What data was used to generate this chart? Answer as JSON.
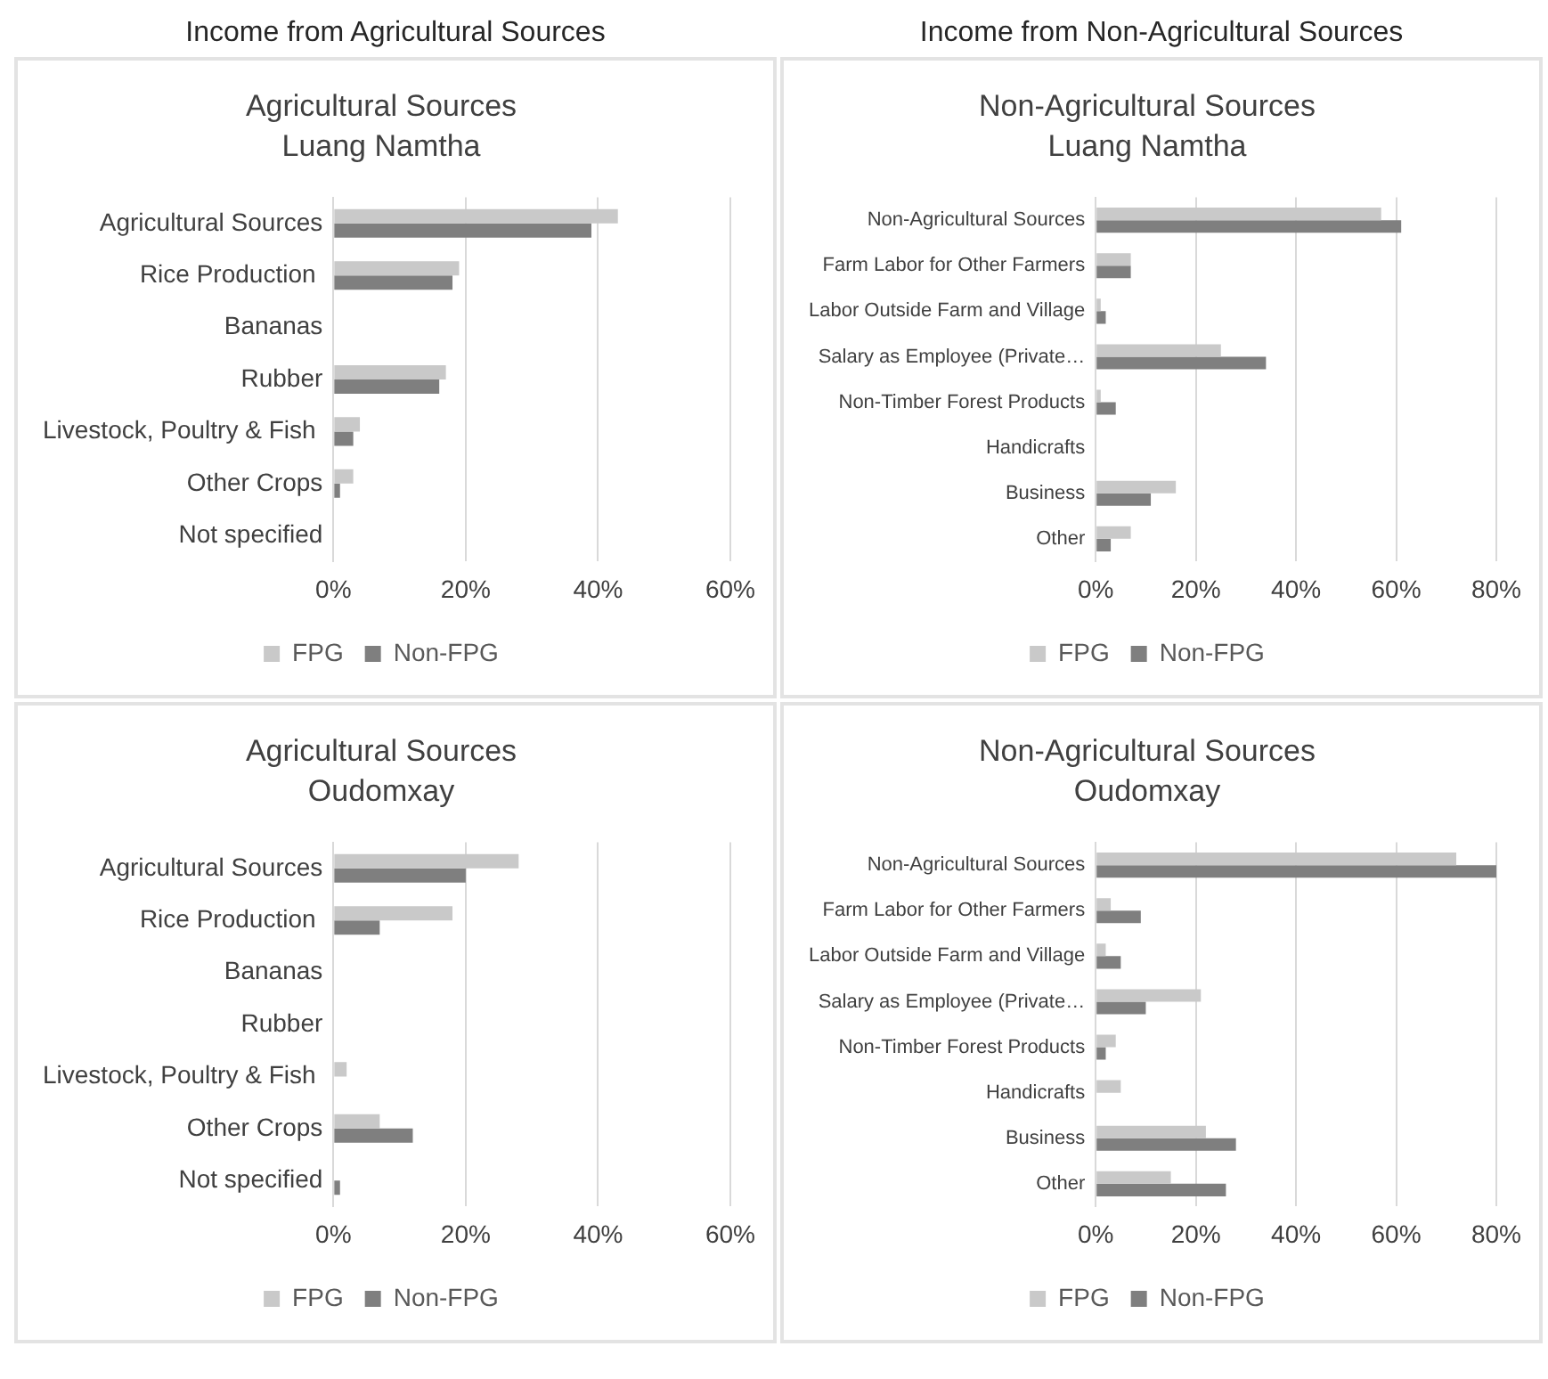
{
  "chart_data": [
    {
      "type": "bar",
      "orientation": "horizontal",
      "title": "Agricultural Sources",
      "subtitle": "Luang Namtha",
      "annotations": [
        "Income from Agricultural Sources"
      ],
      "categories": [
        "Agricultural Sources",
        "Rice Production ",
        "Bananas",
        "Rubber",
        "Livestock, Poultry & Fish ",
        "Other Crops",
        "Not specified"
      ],
      "series": [
        {
          "name": "FPG",
          "color": "#c9c9c9",
          "values": [
            43,
            19,
            0,
            17,
            4,
            3,
            0
          ]
        },
        {
          "name": "Non-FPG",
          "color": "#7f7f7f",
          "values": [
            39,
            18,
            0,
            16,
            3,
            1,
            0
          ]
        }
      ],
      "xlim": [
        0,
        60
      ],
      "xticks": [
        {
          "value": 0,
          "label": "0%"
        },
        {
          "value": 20,
          "label": "20%"
        },
        {
          "value": 40,
          "label": "40%"
        },
        {
          "value": 60,
          "label": "60%"
        }
      ],
      "grid": "x",
      "legend": "bottom"
    },
    {
      "type": "bar",
      "orientation": "horizontal",
      "title": "Non-Agricultural Sources",
      "subtitle": "Luang Namtha",
      "annotations": [
        "Income from Non-Agricultural Sources"
      ],
      "categories": [
        "Non-Agricultural Sources",
        "Farm Labor for Other Farmers",
        "Labor Outside Farm and Village",
        "Salary as Employee (Private…",
        "Non-Timber Forest Products",
        "Handicrafts",
        "Business",
        "Other"
      ],
      "series": [
        {
          "name": "FPG",
          "color": "#c9c9c9",
          "values": [
            57,
            7,
            1,
            25,
            1,
            0,
            16,
            7
          ]
        },
        {
          "name": "Non-FPG",
          "color": "#7f7f7f",
          "values": [
            61,
            7,
            2,
            34,
            4,
            0,
            11,
            3
          ]
        }
      ],
      "xlim": [
        0,
        80
      ],
      "xticks": [
        {
          "value": 0,
          "label": "0%"
        },
        {
          "value": 20,
          "label": "20%"
        },
        {
          "value": 40,
          "label": "40%"
        },
        {
          "value": 60,
          "label": "60%"
        },
        {
          "value": 80,
          "label": "80%"
        }
      ],
      "grid": "x",
      "legend": "bottom"
    },
    {
      "type": "bar",
      "orientation": "horizontal",
      "title": "Agricultural Sources",
      "subtitle": "Oudomxay",
      "categories": [
        "Agricultural Sources",
        "Rice Production ",
        "Bananas",
        "Rubber",
        "Livestock, Poultry & Fish ",
        "Other Crops",
        "Not specified"
      ],
      "series": [
        {
          "name": "FPG",
          "color": "#c9c9c9",
          "values": [
            28,
            18,
            0,
            0,
            2,
            7,
            0
          ]
        },
        {
          "name": "Non-FPG",
          "color": "#7f7f7f",
          "values": [
            20,
            7,
            0,
            0,
            0,
            12,
            1
          ]
        }
      ],
      "xlim": [
        0,
        60
      ],
      "xticks": [
        {
          "value": 0,
          "label": "0%"
        },
        {
          "value": 20,
          "label": "20%"
        },
        {
          "value": 40,
          "label": "40%"
        },
        {
          "value": 60,
          "label": "60%"
        }
      ],
      "grid": "x",
      "legend": "bottom"
    },
    {
      "type": "bar",
      "orientation": "horizontal",
      "title": "Non-Agricultural Sources",
      "subtitle": "Oudomxay",
      "categories": [
        "Non-Agricultural Sources",
        "Farm Labor for Other Farmers",
        "Labor Outside Farm and Village",
        "Salary as Employee (Private…",
        "Non-Timber Forest Products",
        "Handicrafts",
        "Business",
        "Other"
      ],
      "series": [
        {
          "name": "FPG",
          "color": "#c9c9c9",
          "values": [
            72,
            3,
            2,
            21,
            4,
            5,
            22,
            15
          ]
        },
        {
          "name": "Non-FPG",
          "color": "#7f7f7f",
          "values": [
            80,
            9,
            5,
            10,
            2,
            0,
            28,
            26
          ]
        }
      ],
      "xlim": [
        0,
        80
      ],
      "xticks": [
        {
          "value": 0,
          "label": "0%"
        },
        {
          "value": 20,
          "label": "20%"
        },
        {
          "value": 40,
          "label": "40%"
        },
        {
          "value": 60,
          "label": "60%"
        },
        {
          "value": 80,
          "label": "80%"
        }
      ],
      "grid": "x",
      "legend": "bottom"
    }
  ]
}
